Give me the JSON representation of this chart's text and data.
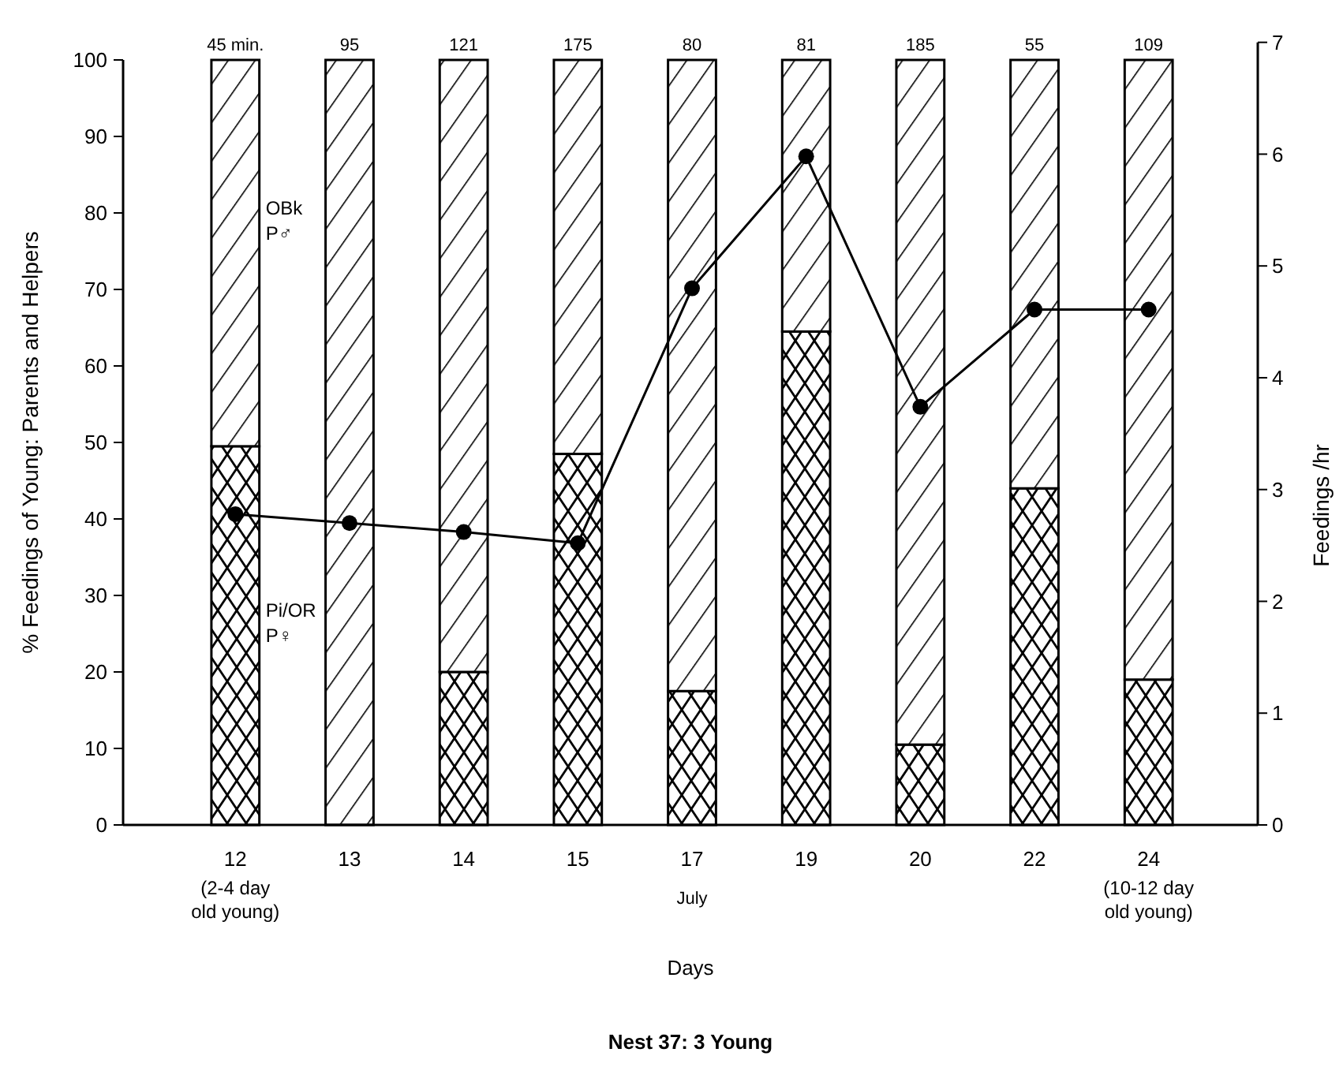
{
  "chart_data": {
    "type": "bar",
    "stacked": true,
    "title": "Nest 37: 3 Young",
    "xlabel": "Days",
    "ylabel": "% Feedings of Young: Parents and Helpers",
    "y2label": "Feedings /hr",
    "categories": [
      "12",
      "13",
      "14",
      "15",
      "17",
      "19",
      "20",
      "22",
      "24"
    ],
    "series": [
      {
        "name": "Pi/OR P♀",
        "color": "#000000",
        "values": [
          49.5,
          0,
          20,
          48.5,
          17.5,
          64.5,
          10.5,
          44,
          19
        ]
      },
      {
        "name": "OBk P♂",
        "color": "#000000",
        "values": [
          50.5,
          100,
          80,
          51.5,
          82.5,
          35.5,
          89.5,
          56,
          81
        ]
      },
      {
        "type": "line",
        "axis": "y2",
        "color": "#000000",
        "values": [
          2.78,
          2.7,
          2.62,
          2.52,
          4.8,
          5.98,
          3.74,
          4.61,
          4.61
        ]
      }
    ],
    "marker": "circle",
    "line_style": "solid",
    "grid": false,
    "ylim": [
      0,
      100
    ],
    "yticks": [
      0,
      10,
      20,
      30,
      40,
      50,
      60,
      70,
      80,
      90,
      100
    ],
    "y2lim": [
      0,
      7
    ],
    "y2ticks": [
      0,
      1,
      2,
      3,
      4,
      5,
      6,
      7
    ],
    "annotations": [
      {
        "text": "45 min.",
        "x": "12",
        "y": 100
      },
      {
        "text": "95",
        "x": "13",
        "y": 100
      },
      {
        "text": "121",
        "x": "14",
        "y": 100
      },
      {
        "text": "175",
        "x": "15",
        "y": 100
      },
      {
        "text": "80",
        "x": "17",
        "y": 100
      },
      {
        "text": "81",
        "x": "19",
        "y": 100
      },
      {
        "text": "185",
        "x": "20",
        "y": 100
      },
      {
        "text": "55",
        "x": "22",
        "y": 100
      },
      {
        "text": "109",
        "x": "24",
        "y": 100
      },
      "(2-4 day old young)",
      "July",
      "(10-12 day old young)"
    ]
  }
}
